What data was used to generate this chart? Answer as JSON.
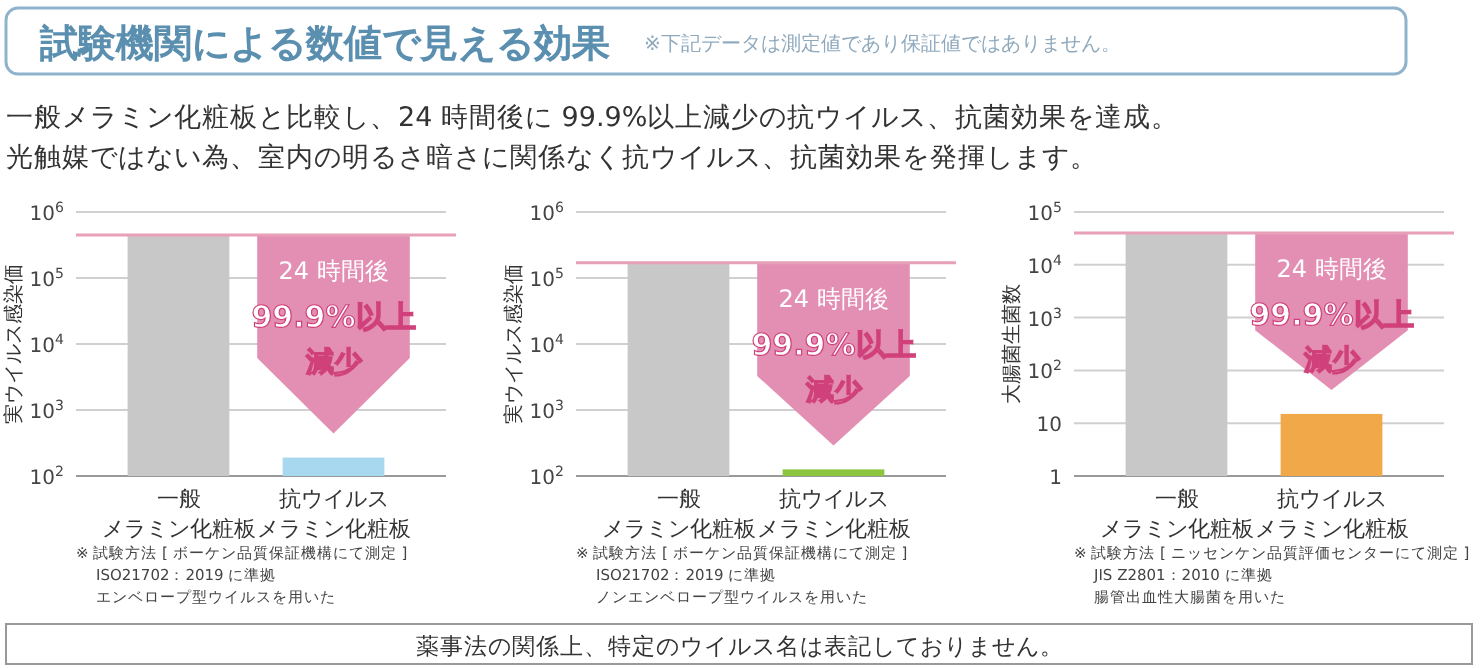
{
  "chart_data": [
    {
      "type": "other",
      "title": "試験機関による数値で見える効果",
      "subtitle": "※下記データは測定値であり保証値ではありません。",
      "annotations": [
        "一般メラミン化粧板と比較し、24 時間後に 99.9%以上減少の抗ウイルス、抗菌効果を達成。",
        "光触媒ではない為、室内の明るさ暗さに関係なく抗ウイルス、抗菌効果を発揮します。",
        "薬事法の関係上、特定のウイルス名は表記しておりません。"
      ]
    },
    {
      "type": "bar",
      "ylabel": "実ウイルス感染価",
      "categories": [
        "一般メラミン化粧板",
        "抗ウイルスメラミン化粧板"
      ],
      "values": [
        450000,
        190
      ],
      "colors": [
        "#c8c8c8",
        "#a8d8f0"
      ],
      "log": "y",
      "grid": "y",
      "ylim": [
        100,
        1000000
      ],
      "yticks": [
        {
          "value": 100,
          "label": "10$^{2}$"
        },
        {
          "value": 1000,
          "label": "10$^{3}$"
        },
        {
          "value": 10000,
          "label": "10$^{4}$"
        },
        {
          "value": 100000,
          "label": "10$^{5}$"
        },
        {
          "value": 1000000,
          "label": "10$^{6}$"
        }
      ],
      "ref_lines": [
        {
          "axis": "y",
          "value": 450000,
          "color": "#e8a0b8"
        }
      ],
      "annotations": [
        "24 時間後",
        "99.9%以上",
        "減少",
        "※ 試験方法 [ ボーケン品質保証機構にて測定 ]",
        "ISO21702：2019 に準拠",
        "エンベロープ型ウイルスを用いた"
      ]
    },
    {
      "type": "bar",
      "ylabel": "実ウイルス感染価",
      "categories": [
        "一般メラミン化粧板",
        "抗ウイルスメラミン化粧板"
      ],
      "values": [
        170000,
        126
      ],
      "colors": [
        "#c8c8c8",
        "#8cc63f"
      ],
      "log": "y",
      "grid": "y",
      "ylim": [
        100,
        1000000
      ],
      "yticks": [
        {
          "value": 100,
          "label": "10$^{2}$"
        },
        {
          "value": 1000,
          "label": "10$^{3}$"
        },
        {
          "value": 10000,
          "label": "10$^{4}$"
        },
        {
          "value": 100000,
          "label": "10$^{5}$"
        },
        {
          "value": 1000000,
          "label": "10$^{6}$"
        }
      ],
      "ref_lines": [
        {
          "axis": "y",
          "value": 170000,
          "color": "#e8a0b8"
        }
      ],
      "annotations": [
        "24 時間後",
        "99.9%以上",
        "減少",
        "※ 試験方法 [ ボーケン品質保証機構にて測定 ]",
        "ISO21702：2019 に準拠",
        "ノンエンベロープ型ウイルスを用いた"
      ]
    },
    {
      "type": "bar",
      "ylabel": "大腸菌生菌数",
      "categories": [
        "一般メラミン化粧板",
        "抗ウイルスメラミン化粧板"
      ],
      "values": [
        40000,
        15
      ],
      "colors": [
        "#c8c8c8",
        "#f0a848"
      ],
      "log": "y",
      "grid": "y",
      "ylim": [
        1,
        100000
      ],
      "yticks": [
        1,
        10,
        {
          "value": 100,
          "label": "10$^{2}$"
        },
        {
          "value": 1000,
          "label": "10$^{3}$"
        },
        {
          "value": 10000,
          "label": "10$^{4}$"
        },
        {
          "value": 100000,
          "label": "10$^{5}$"
        }
      ],
      "ref_lines": [
        {
          "axis": "y",
          "value": 40000,
          "color": "#e8a0b8"
        }
      ],
      "annotations": [
        "24 時間後",
        "99.9%以上",
        "減少",
        "※ 試験方法 [ ニッセンケン品質評価センターにて測定 ]",
        "JIS Z2801：2010 に準拠",
        "腸管出血性大腸菌を用いた"
      ]
    }
  ]
}
